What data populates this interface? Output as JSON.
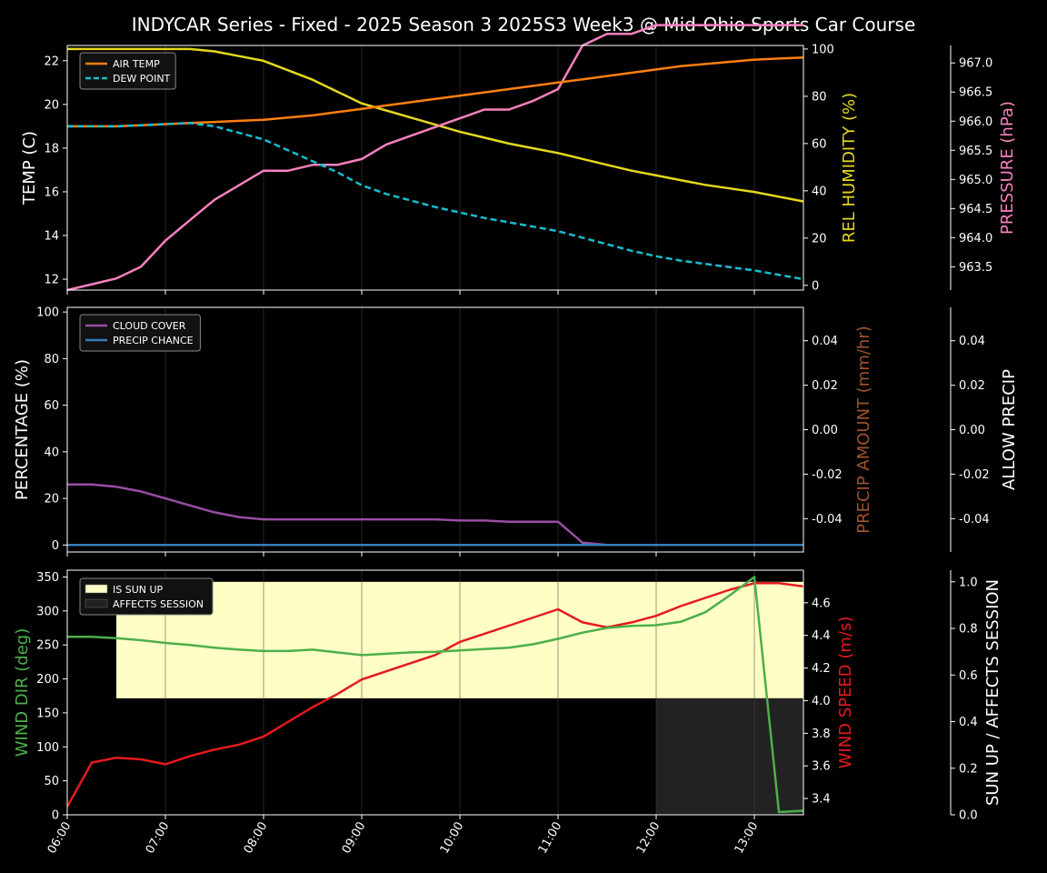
{
  "title": "INDYCAR Series - Fixed - 2025 Season 3 2025S3 Week3 @ Mid-Ohio Sports Car Course",
  "colors": {
    "air_temp": "#ff7f0e",
    "dew_point": "#17becf",
    "humidity": "#e5d81e",
    "pressure": "#f781bf",
    "cloud": "#984ea3",
    "precip_chance": "#377eb8",
    "precip_amount_label": "#a0522d",
    "wind_dir": "#4daf4a",
    "wind_speed": "#e41a1c",
    "sun_up": "#ffffc5",
    "affects": "#222222"
  },
  "chart_data": [
    {
      "type": "line",
      "x": [
        "06:00",
        "06:15",
        "06:30",
        "06:45",
        "07:00",
        "07:15",
        "07:30",
        "07:45",
        "08:00",
        "08:15",
        "08:30",
        "08:45",
        "09:00",
        "09:15",
        "09:30",
        "09:45",
        "10:00",
        "10:15",
        "10:30",
        "10:45",
        "11:00",
        "11:15",
        "11:30",
        "11:45",
        "12:00",
        "12:15",
        "12:30",
        "12:45",
        "13:00",
        "13:15",
        "13:30"
      ],
      "xticks": [
        "06:00",
        "07:00",
        "08:00",
        "09:00",
        "10:00",
        "11:00",
        "12:00",
        "13:00"
      ],
      "ylabel": "TEMP (C)",
      "ylim": [
        11.5,
        22.7
      ],
      "yticks": [
        12,
        14,
        16,
        18,
        20,
        22
      ],
      "series": [
        {
          "name": "AIR TEMP",
          "axis": "left",
          "values": [
            19.0,
            19.0,
            19.0,
            19.05,
            19.1,
            19.15,
            19.2,
            19.25,
            19.3,
            19.4,
            19.5,
            19.65,
            19.8,
            19.95,
            20.1,
            20.25,
            20.4,
            20.55,
            20.7,
            20.85,
            21.0,
            21.15,
            21.3,
            21.45,
            21.6,
            21.75,
            21.85,
            21.95,
            22.05,
            22.1,
            22.15
          ]
        },
        {
          "name": "DEW POINT",
          "axis": "left",
          "values": [
            19.0,
            19.0,
            19.0,
            19.05,
            19.1,
            19.15,
            19.0,
            18.7,
            18.4,
            17.9,
            17.4,
            16.9,
            16.3,
            15.9,
            15.6,
            15.3,
            15.05,
            14.8,
            14.6,
            14.4,
            14.2,
            13.9,
            13.6,
            13.3,
            13.05,
            12.85,
            12.7,
            12.55,
            12.4,
            12.2,
            12.0
          ]
        },
        {
          "name": "REL HUMIDITY (%)",
          "axis": "right",
          "ylim": [
            -2,
            101.5
          ],
          "yticks": [
            0,
            20,
            40,
            60,
            80,
            100
          ],
          "values": [
            100,
            100,
            100,
            100,
            100,
            100,
            99,
            97,
            95,
            91,
            87,
            82,
            77,
            74,
            71,
            68,
            65,
            62.5,
            60,
            58,
            56,
            53.5,
            51,
            48.5,
            46.5,
            44.5,
            42.5,
            41,
            39.5,
            37.5,
            35.5
          ]
        },
        {
          "name": "PRESSURE (hPa)",
          "axis": "far",
          "ylim": [
            963.1,
            967.3
          ],
          "yticks": [
            963.5,
            964.0,
            964.5,
            965.0,
            965.5,
            966.0,
            966.5,
            967.0
          ],
          "values": [
            963.1,
            963.2,
            963.3,
            963.5,
            963.95,
            964.3,
            964.65,
            964.9,
            965.15,
            965.15,
            965.25,
            965.25,
            965.35,
            965.6,
            965.75,
            965.9,
            966.05,
            966.2,
            966.2,
            966.35,
            966.55,
            967.3,
            967.5,
            967.5,
            967.65,
            967.65,
            967.65,
            967.65,
            967.65,
            967.65,
            967.65
          ]
        }
      ]
    },
    {
      "type": "line",
      "ylabel": "PERCENTAGE (%)",
      "ylim": [
        -3,
        102
      ],
      "yticks": [
        0,
        20,
        40,
        60,
        80,
        100
      ],
      "right_label": "PRECIP AMOUNT (mm/hr)",
      "right_ylim": [
        -0.055,
        0.055
      ],
      "right_yticks": [
        -0.04,
        -0.02,
        0.0,
        0.02,
        0.04
      ],
      "far_label": "ALLOW PRECIP",
      "far_yticks": [
        -0.04,
        -0.02,
        0.0,
        0.02,
        0.04
      ],
      "series": [
        {
          "name": "CLOUD COVER",
          "values": [
            26,
            26,
            25,
            23,
            20,
            17,
            14,
            12,
            11,
            11,
            11,
            11,
            11,
            11,
            11,
            11,
            10.5,
            10.5,
            10,
            10,
            10,
            1,
            0,
            0,
            0,
            0,
            0,
            0,
            0,
            0,
            0
          ]
        },
        {
          "name": "PRECIP CHANCE",
          "values": [
            0,
            0,
            0,
            0,
            0,
            0,
            0,
            0,
            0,
            0,
            0,
            0,
            0,
            0,
            0,
            0,
            0,
            0,
            0,
            0,
            0,
            0,
            0,
            0,
            0,
            0,
            0,
            0,
            0,
            0,
            0
          ]
        }
      ]
    },
    {
      "type": "line",
      "ylabel": "WIND DIR (deg)",
      "ylim": [
        0,
        360
      ],
      "yticks": [
        0,
        50,
        100,
        150,
        200,
        250,
        300,
        350
      ],
      "right_label": "WIND SPEED (m/s)",
      "right_ylim": [
        3.3,
        4.8
      ],
      "right_yticks": [
        3.4,
        3.6,
        3.8,
        4.0,
        4.2,
        4.4,
        4.6
      ],
      "far_label": "SUN UP / AFFECTS SESSION",
      "far_ylim": [
        0,
        1.05
      ],
      "far_yticks": [
        0.0,
        0.2,
        0.4,
        0.6,
        0.8,
        1.0
      ],
      "series": [
        {
          "name": "WIND DIR",
          "axis": "left",
          "values": [
            262,
            262,
            260,
            257,
            253,
            250,
            246,
            243,
            241,
            241,
            243,
            239,
            235,
            237,
            239,
            240,
            242,
            244,
            246,
            251,
            259,
            268,
            275,
            278,
            279,
            284,
            298,
            323,
            350,
            4,
            6
          ]
        },
        {
          "name": "WIND SPEED",
          "axis": "right",
          "values": [
            3.35,
            3.62,
            3.65,
            3.64,
            3.61,
            3.66,
            3.7,
            3.73,
            3.78,
            3.87,
            3.96,
            4.04,
            4.13,
            4.18,
            4.23,
            4.28,
            4.36,
            4.41,
            4.46,
            4.51,
            4.56,
            4.48,
            4.45,
            4.48,
            4.52,
            4.58,
            4.63,
            4.68,
            4.72,
            4.72,
            4.7
          ]
        }
      ],
      "legend": [
        "IS SUN UP",
        "AFFECTS SESSION"
      ],
      "sun_up_from": "06:30",
      "sun_up_level": 1.0,
      "affects_from": "12:00",
      "affects_level": 0.5
    }
  ]
}
